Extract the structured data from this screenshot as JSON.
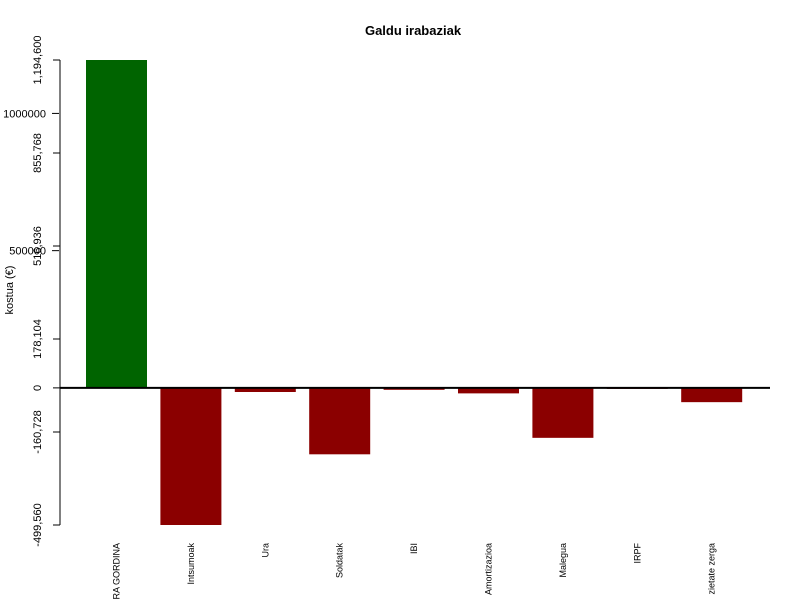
{
  "chart_data": {
    "type": "bar",
    "title": "Galdu irabaziak",
    "ylabel": "kostua (€)",
    "xlabel": "",
    "categories": [
      "SALMENTA GORDINA",
      "Intsumoak",
      "Ura",
      "Soldatak",
      "IBI",
      "Amortizazioa",
      "Malegua",
      "IRPF",
      "Sozietate zerga"
    ],
    "category_labels_visible": [
      "RA GORDINA",
      "Intsumoak",
      "Ura",
      "Soldatak",
      "IBI",
      "Amortizazioa",
      "Malegua",
      "IRPF",
      "zietate zerga"
    ],
    "values": [
      1194600,
      -499560,
      -15000,
      -242000,
      -7000,
      -20000,
      -182000,
      -2000,
      -52000
    ],
    "colors": [
      "#006400",
      "#8b0000",
      "#8b0000",
      "#8b0000",
      "#8b0000",
      "#8b0000",
      "#8b0000",
      "#8b0000",
      "#8b0000"
    ],
    "ylim": [
      -499560,
      1194600
    ],
    "y_ticks_outer": [
      {
        "value": 1194600,
        "label": "1,194,600"
      },
      {
        "value": 855768,
        "label": "855,768"
      },
      {
        "value": 516936,
        "label": "516,936"
      },
      {
        "value": 178104,
        "label": "178,104"
      },
      {
        "value": 0,
        "label": "0"
      },
      {
        "value": -160728,
        "label": "-160,728"
      },
      {
        "value": -499560,
        "label": "-499,560"
      }
    ],
    "y_ticks_inner": [
      {
        "value": 1000000,
        "label": "1000000"
      },
      {
        "value": 500000,
        "label": "500000"
      }
    ],
    "grid": false,
    "legend": "none"
  }
}
